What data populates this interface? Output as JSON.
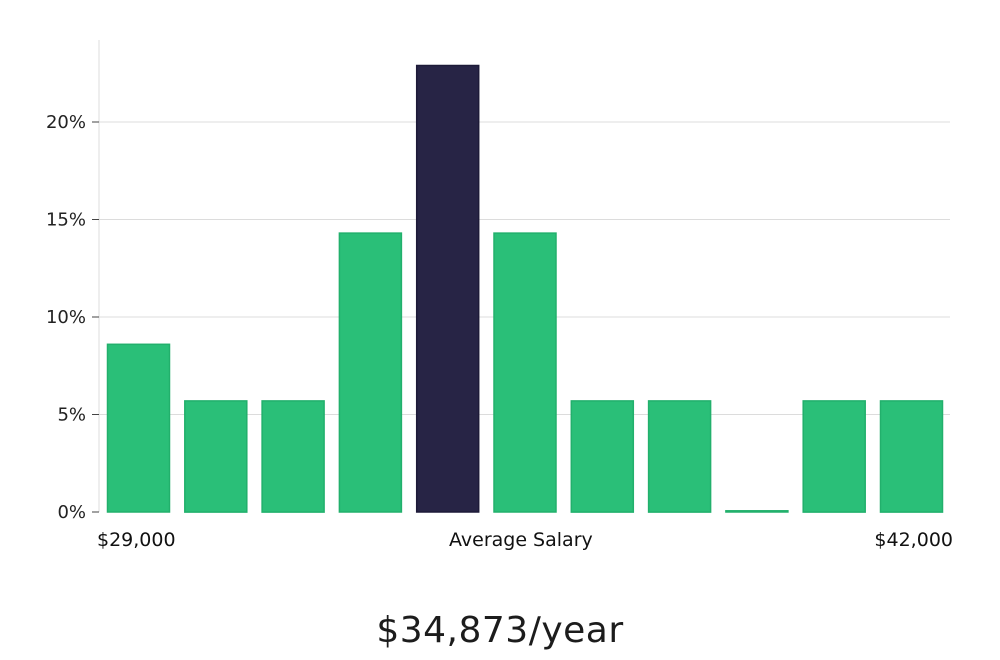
{
  "chart_data": {
    "type": "bar",
    "values": [
      8.6,
      5.7,
      5.7,
      14.3,
      22.9,
      14.3,
      5.7,
      5.7,
      0,
      5.7,
      5.7
    ],
    "highlight_index": 4,
    "ylim": [
      0,
      24
    ],
    "yticks": [
      0,
      5,
      10,
      15,
      20
    ],
    "ytick_labels": [
      "0%",
      "5%",
      "10%",
      "15%",
      "20%"
    ],
    "x_range_labels": {
      "min": "$29,000",
      "center": "Average Salary",
      "max": "$42,000"
    },
    "grid": true
  },
  "colors": {
    "bar": "#2abf78",
    "bar_stroke": "#22b06c",
    "highlight": "#272445",
    "grid": "#dcdcdc",
    "axis": "#dddddd"
  },
  "summary": {
    "salary": "$34,873/year"
  }
}
